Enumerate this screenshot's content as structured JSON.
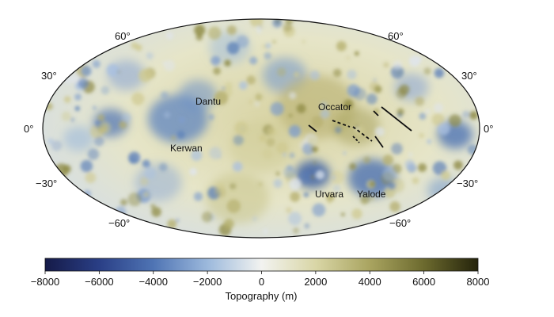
{
  "map": {
    "projection": "Hammer (equal-area ellipse)",
    "lat_labels_left": [
      "60°",
      "30°",
      "0°",
      "−30°",
      "−60°"
    ],
    "lat_labels_right": [
      "60°",
      "30°",
      "0°",
      "−30°",
      "−60°"
    ],
    "features": [
      {
        "name": "Dantu"
      },
      {
        "name": "Occator"
      },
      {
        "name": "Kerwan"
      },
      {
        "name": "Urvara"
      },
      {
        "name": "Yalode"
      }
    ],
    "colors": {
      "ocean_blue_dark": "#1f2d6b",
      "mid_blue": "#5b7fb8",
      "light": "#f3f4ee",
      "olive_light": "#d7d3a3",
      "olive_dark": "#2b2a10"
    }
  },
  "colorbar": {
    "title": "Topography (m)",
    "ticks": [
      "−8000",
      "−6000",
      "−4000",
      "−2000",
      "0",
      "2000",
      "4000",
      "6000",
      "8000"
    ],
    "min": -8000,
    "max": 8000,
    "colormap": [
      "#151a48",
      "#2a3f86",
      "#4f74b4",
      "#9cb9dc",
      "#f2f3f0",
      "#d9d6a6",
      "#a9a460",
      "#6c6a2e",
      "#24230b"
    ]
  }
}
